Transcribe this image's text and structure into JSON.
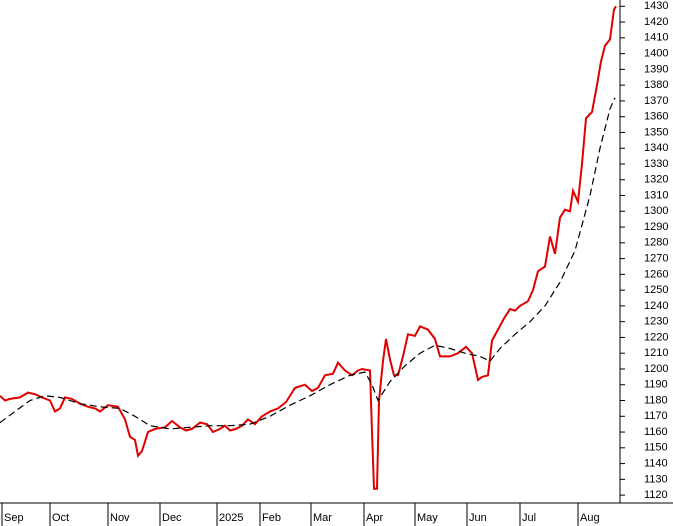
{
  "chart_data": {
    "type": "line",
    "x": [
      0,
      2,
      4,
      8,
      11.2,
      14,
      16.8,
      20,
      22,
      24,
      26,
      28.8,
      32,
      35.2,
      38,
      40,
      43.2,
      47.2,
      50,
      52,
      54,
      55.2,
      56.8,
      59.2,
      62,
      66,
      68.8,
      72,
      74.4,
      76.8,
      80,
      82.8,
      85.2,
      88,
      90,
      92,
      94.4,
      96.8,
      99.2,
      102,
      104.8,
      108,
      111.2,
      114.4,
      118,
      122,
      124.8,
      127.2,
      130,
      133.2,
      135.2,
      138,
      140.8,
      143.2,
      144.8,
      148,
      148.8,
      149.6,
      150.8,
      151.6,
      153.2,
      154.4,
      156,
      157.6,
      159.2,
      161.2,
      163.2,
      166,
      168,
      171.2,
      174,
      176,
      180,
      183.2,
      186.4,
      188.8,
      191.2,
      192.8,
      195.2,
      196.8,
      199.2,
      201.6,
      204,
      206,
      208,
      211.2,
      213.2,
      215.2,
      218,
      220,
      222,
      224,
      226,
      228,
      229.2,
      231.2,
      232.8,
      234.4,
      236.8,
      238.8,
      240.4,
      242,
      244,
      245.6,
      246.4
    ],
    "series": [
      {
        "color": "#e00000",
        "values": [
          1183,
          1180,
          1181,
          1182,
          1185,
          1184,
          1182,
          1180,
          1173,
          1175,
          1182,
          1181,
          1178,
          1176,
          1175,
          1173,
          1177,
          1176,
          1168,
          1157,
          1155,
          1145,
          1148,
          1160,
          1162,
          1163,
          1167,
          1163,
          1161,
          1162,
          1166,
          1165,
          1160,
          1162,
          1164,
          1161,
          1162,
          1164,
          1168,
          1165,
          1170,
          1173,
          1175,
          1179,
          1188,
          1190,
          1186,
          1188,
          1196,
          1197,
          1204,
          1199,
          1196,
          1199,
          1200,
          1199,
          1160,
          1124,
          1124,
          1180,
          1205,
          1219,
          1206,
          1196,
          1196,
          1208,
          1222,
          1221,
          1227,
          1225,
          1219,
          1208,
          1208,
          1210,
          1214,
          1210,
          1193,
          1195,
          1196,
          1218,
          1225,
          1232,
          1238,
          1237,
          1240,
          1243,
          1250,
          1262,
          1265,
          1284,
          1273,
          1296,
          1301,
          1300,
          1313,
          1306,
          1330,
          1359,
          1363,
          1380,
          1395,
          1405,
          1409,
          1428,
          1430
        ]
      },
      {
        "color": "#000000",
        "dashed": true,
        "x": [
          0,
          6,
          12,
          18,
          24,
          32,
          40,
          48,
          54,
          60,
          68,
          76,
          84,
          92,
          100,
          108,
          116,
          124,
          132,
          140,
          146,
          148.8,
          151.2,
          156,
          162,
          168,
          174,
          180,
          186,
          192,
          196,
          200,
          206,
          212,
          218,
          224,
          230,
          236,
          240,
          244,
          246
        ],
        "values": [
          1166,
          1173,
          1180,
          1183,
          1182,
          1178,
          1176,
          1175,
          1170,
          1164,
          1162,
          1163,
          1164,
          1164,
          1165,
          1170,
          1177,
          1183,
          1190,
          1196,
          1198,
          1190,
          1180,
          1192,
          1202,
          1210,
          1215,
          1213,
          1210,
          1208,
          1205,
          1213,
          1222,
          1230,
          1240,
          1255,
          1275,
          1310,
          1340,
          1365,
          1372
        ]
      }
    ],
    "xlim": [
      0,
      248
    ],
    "xticks": [
      {
        "value": 0.8,
        "label": "Sep"
      },
      {
        "value": 20,
        "label": "Oct"
      },
      {
        "value": 43.2,
        "label": "Nov"
      },
      {
        "value": 64,
        "label": "Dec"
      },
      {
        "value": 86.8,
        "label": "2025"
      },
      {
        "value": 104,
        "label": "Feb"
      },
      {
        "value": 124.4,
        "label": "Mar"
      },
      {
        "value": 145.6,
        "label": "Apr"
      },
      {
        "value": 166,
        "label": "May"
      },
      {
        "value": 186.8,
        "label": "Jun"
      },
      {
        "value": 208,
        "label": "Jul"
      },
      {
        "value": 231.2,
        "label": "Aug"
      }
    ],
    "ylim": [
      1115,
      1434
    ],
    "yticks": [
      1120,
      1130,
      1140,
      1150,
      1160,
      1170,
      1180,
      1190,
      1200,
      1210,
      1220,
      1230,
      1240,
      1250,
      1260,
      1270,
      1280,
      1290,
      1300,
      1310,
      1320,
      1330,
      1340,
      1350,
      1360,
      1370,
      1380,
      1390,
      1400,
      1410,
      1420,
      1430
    ]
  }
}
